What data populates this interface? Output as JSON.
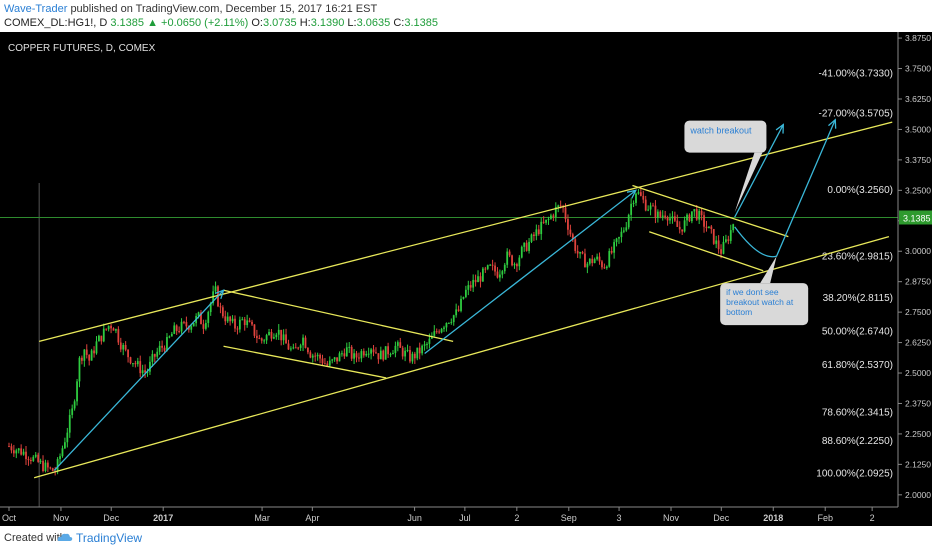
{
  "header": {
    "author": "Wave-Trader",
    "published_text": "published on TradingView.com, December 15, 2017 16:21 EST",
    "symbol": "COMEX_DL:HG1!, D",
    "last": "3.1385",
    "change_arrow": "▲",
    "change": "+0.0650 (+2.11%)",
    "o_label": "O:",
    "o_value": "3.0735",
    "h_label": "H:",
    "h_value": "3.1390",
    "l_label": "L:",
    "l_value": "3.0635",
    "c_label": "C:",
    "c_value": "3.1385"
  },
  "footer": {
    "created_with": "Created with",
    "brand": "TradingView",
    "brand_icon": "tradingview-cloud-icon"
  },
  "colors": {
    "background": "#000000",
    "up_candle": "#2ecc40",
    "down_candle": "#e0433d",
    "channel": "#e8e85a",
    "arrow": "#3ab7d8",
    "price_line": "#2e8b2e",
    "axis_text": "#cccccc",
    "label_box": "#d9d9d9",
    "label_text": "#2a7fd4"
  },
  "chart_data": {
    "type": "candlestick",
    "title": "COPPER FUTURES, D, COMEX",
    "ylim": [
      1.95,
      3.9
    ],
    "y_ticks": [
      "3.8750",
      "3.7500",
      "3.6250",
      "3.5000",
      "3.3750",
      "3.2500",
      "3.1250",
      "3.0000",
      "2.8750",
      "2.7500",
      "2.6250",
      "2.5000",
      "2.3750",
      "2.2500",
      "2.1250",
      "2.0000"
    ],
    "current_price": "3.1385",
    "x_ticks": [
      "Oct",
      "Nov",
      "Dec",
      "2017",
      "Mar",
      "Apr",
      "Jun",
      "Jul",
      "2",
      "Sep",
      "3",
      "Nov",
      "Dec",
      "2018",
      "Feb",
      "2"
    ],
    "x_tick_days": [
      0,
      31,
      61,
      92,
      151,
      181,
      242,
      272,
      303,
      334,
      364,
      395,
      425,
      456,
      487,
      515
    ],
    "fib_levels": [
      {
        "label": "-41.00%(3.7330)",
        "value": 3.733
      },
      {
        "label": "-27.00%(3.5705)",
        "value": 3.5705
      },
      {
        "label": "0.00%(3.2560)",
        "value": 3.256
      },
      {
        "label": "23.60%(2.9815)",
        "value": 2.9815
      },
      {
        "label": "38.20%(2.8115)",
        "value": 2.8115
      },
      {
        "label": "50.00%(2.6740)",
        "value": 2.674
      },
      {
        "label": "61.80%(2.5370)",
        "value": 2.537
      },
      {
        "label": "78.60%(2.3415)",
        "value": 2.3415
      },
      {
        "label": "88.60%(2.2250)",
        "value": 2.225
      },
      {
        "label": "100.00%(2.0925)",
        "value": 2.0925
      }
    ],
    "price_path": [
      [
        0,
        2.2
      ],
      [
        10,
        2.17
      ],
      [
        20,
        2.12
      ],
      [
        25,
        2.1
      ],
      [
        28,
        2.1
      ],
      [
        33,
        2.22
      ],
      [
        38,
        2.35
      ],
      [
        42,
        2.55
      ],
      [
        45,
        2.6
      ],
      [
        48,
        2.55
      ],
      [
        52,
        2.62
      ],
      [
        56,
        2.66
      ],
      [
        60,
        2.7
      ],
      [
        63,
        2.69
      ],
      [
        66,
        2.63
      ],
      [
        70,
        2.58
      ],
      [
        74,
        2.55
      ],
      [
        78,
        2.52
      ],
      [
        82,
        2.5
      ],
      [
        86,
        2.56
      ],
      [
        90,
        2.6
      ],
      [
        94,
        2.62
      ],
      [
        98,
        2.67
      ],
      [
        103,
        2.69
      ],
      [
        108,
        2.7
      ],
      [
        113,
        2.73
      ],
      [
        116,
        2.7
      ],
      [
        120,
        2.78
      ],
      [
        123,
        2.84
      ],
      [
        126,
        2.76
      ],
      [
        130,
        2.72
      ],
      [
        135,
        2.69
      ],
      [
        140,
        2.72
      ],
      [
        145,
        2.68
      ],
      [
        150,
        2.63
      ],
      [
        155,
        2.66
      ],
      [
        160,
        2.68
      ],
      [
        165,
        2.62
      ],
      [
        170,
        2.58
      ],
      [
        175,
        2.65
      ],
      [
        180,
        2.58
      ],
      [
        186,
        2.56
      ],
      [
        190,
        2.53
      ],
      [
        196,
        2.56
      ],
      [
        201,
        2.6
      ],
      [
        206,
        2.56
      ],
      [
        211,
        2.59
      ],
      [
        216,
        2.61
      ],
      [
        221,
        2.57
      ],
      [
        226,
        2.59
      ],
      [
        231,
        2.61
      ],
      [
        236,
        2.58
      ],
      [
        240,
        2.56
      ],
      [
        245,
        2.59
      ],
      [
        250,
        2.62
      ],
      [
        256,
        2.68
      ],
      [
        262,
        2.72
      ],
      [
        268,
        2.75
      ],
      [
        272,
        2.83
      ],
      [
        277,
        2.87
      ],
      [
        282,
        2.9
      ],
      [
        287,
        2.93
      ],
      [
        292,
        2.91
      ],
      [
        297,
        2.98
      ],
      [
        302,
        2.95
      ],
      [
        306,
        3.0
      ],
      [
        311,
        3.04
      ],
      [
        316,
        3.09
      ],
      [
        321,
        3.12
      ],
      [
        326,
        3.17
      ],
      [
        330,
        3.19
      ],
      [
        333,
        3.12
      ],
      [
        336,
        3.05
      ],
      [
        340,
        2.98
      ],
      [
        345,
        2.95
      ],
      [
        350,
        2.97
      ],
      [
        355,
        2.94
      ],
      [
        360,
        3.0
      ],
      [
        364,
        3.05
      ],
      [
        368,
        3.11
      ],
      [
        371,
        3.19
      ],
      [
        374,
        3.25
      ],
      [
        377,
        3.22
      ],
      [
        380,
        3.19
      ],
      [
        384,
        3.17
      ],
      [
        388,
        3.14
      ],
      [
        392,
        3.16
      ],
      [
        396,
        3.12
      ],
      [
        400,
        3.09
      ],
      [
        404,
        3.12
      ],
      [
        408,
        3.17
      ],
      [
        412,
        3.14
      ],
      [
        416,
        3.1
      ],
      [
        419,
        3.07
      ],
      [
        422,
        3.03
      ],
      [
        425,
        3.0
      ],
      [
        428,
        3.04
      ],
      [
        431,
        3.09
      ],
      [
        433,
        3.14
      ]
    ],
    "channel_lines": [
      {
        "name": "upper-channel",
        "from": [
          18,
          2.63
        ],
        "to": [
          527,
          3.53
        ]
      },
      {
        "name": "lower-channel",
        "from": [
          15,
          2.07
        ],
        "to": [
          525,
          3.06
        ]
      },
      {
        "name": "triangle-top",
        "from": [
          128,
          2.84
        ],
        "to": [
          265,
          2.63
        ]
      },
      {
        "name": "triangle-bottom",
        "from": [
          128,
          2.61
        ],
        "to": [
          225,
          2.48
        ]
      },
      {
        "name": "flag-top",
        "from": [
          372,
          3.27
        ],
        "to": [
          465,
          3.06
        ]
      },
      {
        "name": "flag-bottom",
        "from": [
          382,
          3.08
        ],
        "to": [
          450,
          2.92
        ]
      }
    ],
    "arrows": [
      {
        "name": "impulse-arrow-1",
        "points": [
          [
            27,
            2.1
          ],
          [
            128,
            2.84
          ]
        ]
      },
      {
        "name": "impulse-arrow-2",
        "points": [
          [
            248,
            2.58
          ],
          [
            374,
            3.25
          ]
        ]
      },
      {
        "name": "breakout-projection-arrow",
        "points": [
          [
            433,
            3.14
          ],
          [
            462,
            3.52
          ]
        ]
      },
      {
        "name": "breakdown-projection-arrow",
        "points": [
          [
            433,
            3.1
          ],
          [
            448,
            2.96
          ],
          [
            458,
            2.98
          ],
          [
            493,
            3.54
          ]
        ]
      }
    ],
    "annotations": [
      {
        "text": "watch breakout",
        "x_day": 403,
        "y_value": 3.52,
        "pointer": [
          433,
          3.16
        ]
      },
      {
        "text": "if we dont see breakout watch at bottom",
        "x_day": 447,
        "y_value": 2.82,
        "pointer": [
          458,
          2.98
        ]
      }
    ]
  }
}
